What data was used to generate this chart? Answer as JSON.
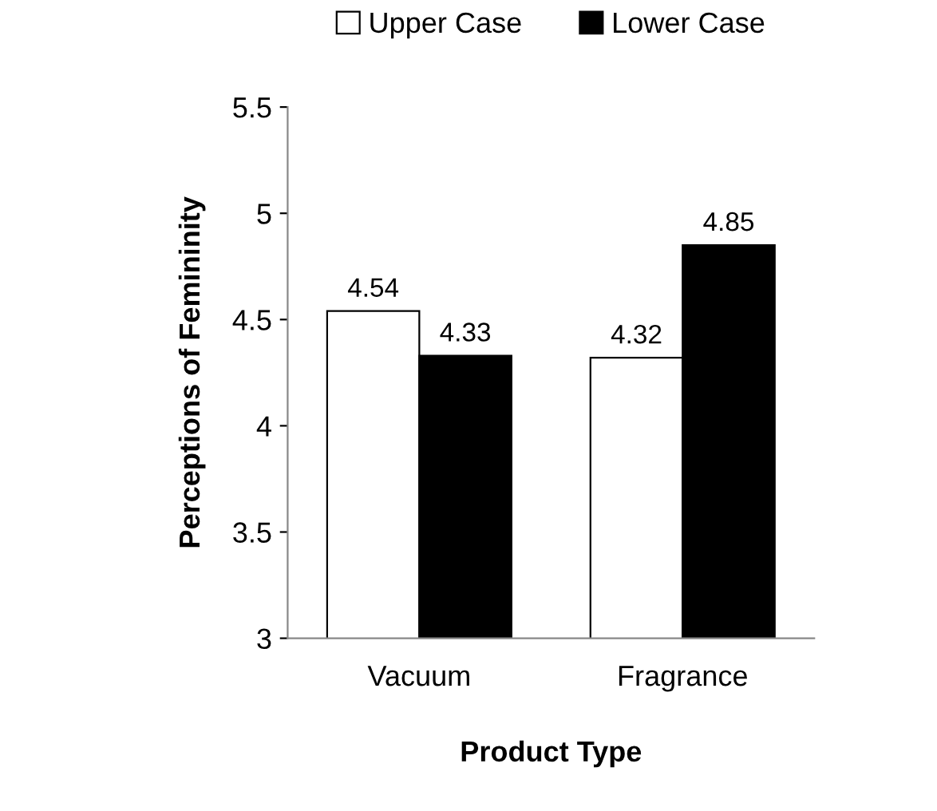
{
  "chart_data": {
    "type": "bar",
    "xlabel": "Product Type",
    "ylabel": "Perceptions of Femininity",
    "categories": [
      "Vacuum",
      "Fragrance"
    ],
    "series": [
      {
        "name": "Upper Case",
        "color": "#ffffff",
        "values": [
          4.54,
          4.32
        ]
      },
      {
        "name": "Lower Case",
        "color": "#000000",
        "values": [
          4.33,
          4.85
        ]
      }
    ],
    "ylim": [
      3,
      5.5
    ],
    "yticks": [
      3,
      {
        "value": 3.5,
        "label": "3.5"
      },
      {
        "value": 4,
        "label": "4"
      },
      {
        "value": 4.5,
        "label": "4.5"
      },
      {
        "value": 5,
        "label": "5"
      },
      {
        "value": 5.5,
        "label": "5.5"
      }
    ],
    "data_labels": true,
    "legend": "top",
    "grid": false
  }
}
